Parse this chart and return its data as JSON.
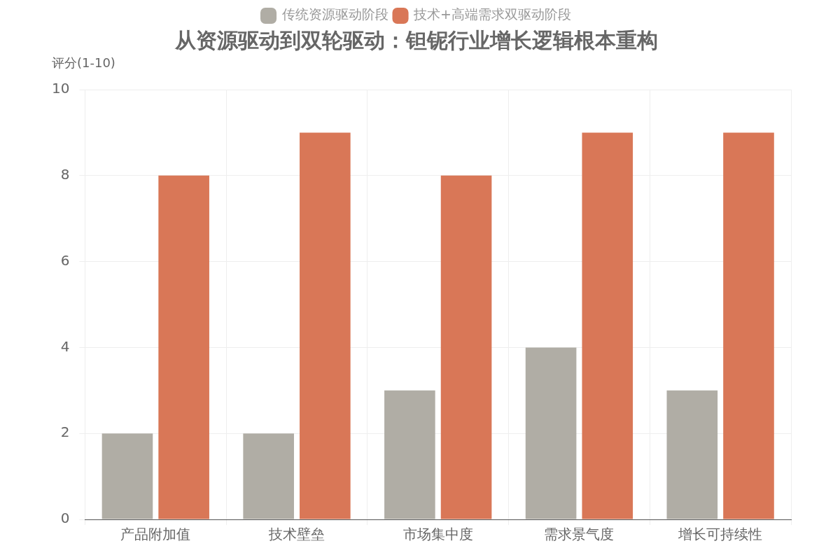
{
  "chart_data": {
    "type": "bar",
    "title": "从资源驱动到双轮驱动：钽铌行业增长逻辑根本重构",
    "ylabel": "评分(1-10)",
    "categories": [
      "产品附加值",
      "技术壁垒",
      "市场集中度",
      "需求景气度",
      "增长可持续性"
    ],
    "series": [
      {
        "name": "传统资源驱动阶段",
        "color": "#b0ada5",
        "values": [
          2,
          2,
          3,
          4,
          3
        ]
      },
      {
        "name": "技术+高端需求双驱动阶段",
        "color": "#d97757",
        "values": [
          8,
          9,
          8,
          9,
          9
        ]
      }
    ],
    "ylim": [
      0,
      10
    ],
    "yticks": [
      0,
      2,
      4,
      6,
      8,
      10
    ],
    "grid": true,
    "legend": "top"
  }
}
